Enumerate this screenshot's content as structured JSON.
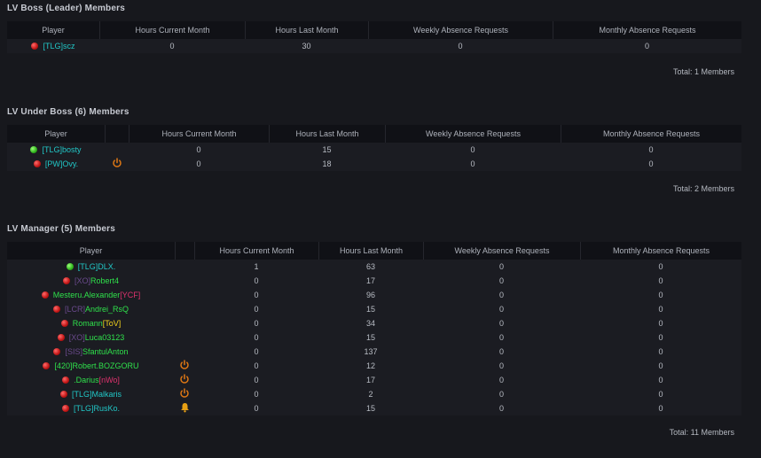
{
  "colors": {
    "teal": "#21c7c7",
    "green": "#2fe04b",
    "purple": "#6a4a8c",
    "pink": "#e0326e",
    "yellow": "#f2d21c",
    "online": "#2fb41c",
    "offline": "#c01414",
    "power": "#e07814",
    "bell": "#e8a014"
  },
  "sections": [
    {
      "title": "LV Boss (Leader) Members",
      "columns": [
        "Player",
        "Hours Current Month",
        "Hours Last Month",
        "Weekly Absence Requests",
        "Monthly Absence Requests"
      ],
      "rows": [
        {
          "status": "red",
          "parts": [
            {
              "t": "[TLG]",
              "c": "teal"
            },
            {
              "t": "scz",
              "c": "teal"
            }
          ],
          "icon": "",
          "hcm": "0",
          "hlm": "30",
          "war": "0",
          "mar": "0"
        }
      ],
      "total": "Total: 1 Members"
    },
    {
      "title": "LV Under Boss (6) Members",
      "columns": [
        "Player",
        "",
        "Hours Current Month",
        "Hours Last Month",
        "Weekly Absence Requests",
        "Monthly Absence Requests"
      ],
      "rows": [
        {
          "status": "green",
          "parts": [
            {
              "t": "[TLG]",
              "c": "teal"
            },
            {
              "t": "bosty",
              "c": "teal"
            }
          ],
          "icon": "",
          "hcm": "0",
          "hlm": "15",
          "war": "0",
          "mar": "0"
        },
        {
          "status": "red",
          "parts": [
            {
              "t": "[PW]",
              "c": "teal"
            },
            {
              "t": "Ovy.",
              "c": "teal"
            }
          ],
          "icon": "power-icon",
          "hcm": "0",
          "hlm": "18",
          "war": "0",
          "mar": "0"
        }
      ],
      "total": "Total: 2 Members"
    },
    {
      "title": "LV Manager (5) Members",
      "columns": [
        "Player",
        "",
        "Hours Current Month",
        "Hours Last Month",
        "Weekly Absence Requests",
        "Monthly Absence Requests"
      ],
      "rows": [
        {
          "status": "green",
          "parts": [
            {
              "t": "[TLG]",
              "c": "teal"
            },
            {
              "t": "DLX.",
              "c": "teal"
            }
          ],
          "icon": "",
          "hcm": "1",
          "hlm": "63",
          "war": "0",
          "mar": "0"
        },
        {
          "status": "red",
          "parts": [
            {
              "t": "[XO]",
              "c": "purple"
            },
            {
              "t": "Robert4",
              "c": "green"
            }
          ],
          "icon": "",
          "hcm": "0",
          "hlm": "17",
          "war": "0",
          "mar": "0"
        },
        {
          "status": "red",
          "parts": [
            {
              "t": "Mesteru.Alexander",
              "c": "green"
            },
            {
              "t": "[YCF]",
              "c": "pink"
            }
          ],
          "icon": "",
          "hcm": "0",
          "hlm": "96",
          "war": "0",
          "mar": "0"
        },
        {
          "status": "red",
          "parts": [
            {
              "t": "[LCR]",
              "c": "purple"
            },
            {
              "t": "Andrei_RsQ",
              "c": "green"
            }
          ],
          "icon": "",
          "hcm": "0",
          "hlm": "15",
          "war": "0",
          "mar": "0"
        },
        {
          "status": "red",
          "parts": [
            {
              "t": "Romann",
              "c": "green"
            },
            {
              "t": "[ToV]",
              "c": "yellow"
            }
          ],
          "icon": "",
          "hcm": "0",
          "hlm": "34",
          "war": "0",
          "mar": "0"
        },
        {
          "status": "red",
          "parts": [
            {
              "t": "[XO]",
              "c": "purple"
            },
            {
              "t": "Luca03123",
              "c": "green"
            }
          ],
          "icon": "",
          "hcm": "0",
          "hlm": "15",
          "war": "0",
          "mar": "0"
        },
        {
          "status": "red",
          "parts": [
            {
              "t": "[SIS]",
              "c": "purple"
            },
            {
              "t": "SfantulAnton",
              "c": "green"
            }
          ],
          "icon": "",
          "hcm": "0",
          "hlm": "137",
          "war": "0",
          "mar": "0"
        },
        {
          "status": "red",
          "parts": [
            {
              "t": "[420]",
              "c": "green"
            },
            {
              "t": "Robert.BOZGORU",
              "c": "green"
            }
          ],
          "icon": "power-icon",
          "hcm": "0",
          "hlm": "12",
          "war": "0",
          "mar": "0"
        },
        {
          "status": "red",
          "parts": [
            {
              "t": ".Darius",
              "c": "green"
            },
            {
              "t": "[nWo]",
              "c": "pink"
            }
          ],
          "icon": "power-icon",
          "hcm": "0",
          "hlm": "17",
          "war": "0",
          "mar": "0"
        },
        {
          "status": "red",
          "parts": [
            {
              "t": "[TLG]",
              "c": "teal"
            },
            {
              "t": "Malkaris",
              "c": "teal"
            }
          ],
          "icon": "power-icon",
          "hcm": "0",
          "hlm": "2",
          "war": "0",
          "mar": "0"
        },
        {
          "status": "red",
          "parts": [
            {
              "t": "[TLG]",
              "c": "teal"
            },
            {
              "t": "RusKo.",
              "c": "teal"
            }
          ],
          "icon": "bell-icon",
          "hcm": "0",
          "hlm": "15",
          "war": "0",
          "mar": "0"
        }
      ],
      "total": "Total: 11 Members"
    }
  ]
}
